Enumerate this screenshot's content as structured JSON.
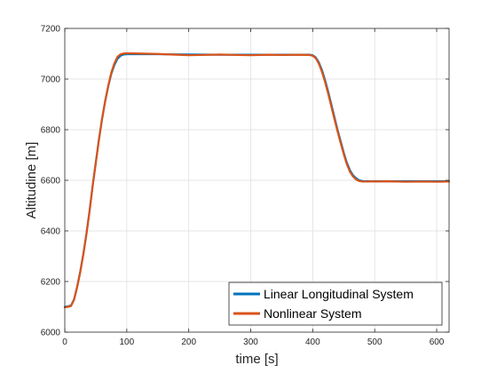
{
  "chart_data": {
    "type": "line",
    "title": "",
    "xlabel": "time [s]",
    "ylabel": "Altitudine [m]",
    "xlim": [
      0,
      620
    ],
    "ylim": [
      6000,
      7200
    ],
    "xticks": [
      0,
      100,
      200,
      300,
      400,
      500,
      600
    ],
    "yticks": [
      6000,
      6200,
      6400,
      6600,
      6800,
      7000,
      7200
    ],
    "grid": true,
    "legend_position": "bottom-right",
    "series": [
      {
        "name": "Linear Longitudinal System",
        "color": "#0072BD",
        "x": [
          0,
          5,
          10,
          15,
          20,
          25,
          30,
          35,
          40,
          45,
          50,
          55,
          60,
          65,
          70,
          75,
          80,
          85,
          90,
          95,
          100,
          150,
          200,
          250,
          300,
          350,
          395,
          400,
          405,
          410,
          415,
          420,
          425,
          430,
          435,
          440,
          445,
          450,
          455,
          460,
          465,
          470,
          475,
          480,
          485,
          490,
          495,
          500,
          550,
          600,
          620
        ],
        "y": [
          6100,
          6102,
          6105,
          6130,
          6180,
          6240,
          6310,
          6390,
          6480,
          6580,
          6670,
          6760,
          6840,
          6910,
          6970,
          7020,
          7055,
          7080,
          7092,
          7097,
          7098,
          7098,
          7097,
          7096,
          7096,
          7096,
          7096,
          7094,
          7085,
          7065,
          7035,
          6995,
          6950,
          6900,
          6850,
          6800,
          6755,
          6710,
          6670,
          6640,
          6620,
          6608,
          6600,
          6597,
          6596,
          6596,
          6596,
          6596,
          6596,
          6596,
          6596
        ]
      },
      {
        "name": "Nonlinear System",
        "color": "#D95319",
        "x": [
          0,
          5,
          10,
          15,
          20,
          25,
          30,
          35,
          40,
          45,
          50,
          55,
          60,
          65,
          70,
          75,
          80,
          85,
          90,
          95,
          100,
          120,
          150,
          180,
          200,
          220,
          250,
          280,
          300,
          330,
          350,
          380,
          395,
          400,
          405,
          410,
          415,
          420,
          425,
          430,
          435,
          440,
          445,
          450,
          455,
          460,
          465,
          470,
          475,
          480,
          485,
          490,
          495,
          500,
          520,
          550,
          580,
          600,
          620
        ],
        "y": [
          6098,
          6100,
          6103,
          6128,
          6178,
          6238,
          6308,
          6388,
          6478,
          6578,
          6668,
          6758,
          6840,
          6912,
          6972,
          7025,
          7062,
          7088,
          7098,
          7101,
          7102,
          7101,
          7099,
          7096,
          7094,
          7095,
          7097,
          7095,
          7094,
          7096,
          7095,
          7096,
          7095,
          7092,
          7082,
          7060,
          7028,
          6988,
          6942,
          6892,
          6842,
          6794,
          6748,
          6704,
          6664,
          6634,
          6615,
          6603,
          6597,
          6595,
          6595,
          6595,
          6596,
          6595,
          6596,
          6594,
          6595,
          6594,
          6595
        ]
      }
    ]
  }
}
